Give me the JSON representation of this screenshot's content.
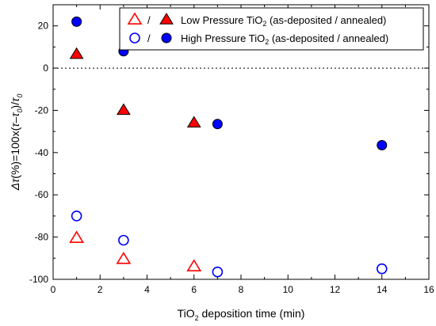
{
  "chart_data": {
    "type": "scatter",
    "xlabel": {
      "pre": "TiO",
      "sub": "2",
      "post": " deposition time (min)"
    },
    "ylabel": {
      "parts": [
        {
          "t": "Δ",
          "style": "italic"
        },
        {
          "t": "τ",
          "style": "italic"
        },
        {
          "t": "(%)=100x(",
          "style": "normal"
        },
        {
          "t": "τ",
          "style": "italic"
        },
        {
          "t": "–",
          "style": "normal"
        },
        {
          "t": "τ",
          "style": "italic"
        },
        {
          "t": "0",
          "style": "italic-sub"
        },
        {
          "t": ")/",
          "style": "normal"
        },
        {
          "t": "τ",
          "style": "italic"
        },
        {
          "t": "0",
          "style": "italic-sub"
        }
      ]
    },
    "xlim": [
      0,
      16
    ],
    "ylim": [
      -100,
      30
    ],
    "xticks": [
      "0",
      "2",
      "4",
      "6",
      "8",
      "10",
      "12",
      "14",
      "16"
    ],
    "yticks": [
      "20",
      "0",
      "-20",
      "-40",
      "-60",
      "-80",
      "-100"
    ],
    "zero_line": true,
    "grid": false,
    "legend_position": "top-right",
    "legend": [
      {
        "sep": "/",
        "pre": "Low Pressure TiO",
        "sub": "2",
        "post": " (as-deposited / annealed)"
      },
      {
        "sep": "/",
        "pre": "High Pressure TiO",
        "sub": "2",
        "post": " (as-deposited / annealed)"
      }
    ],
    "series": [
      {
        "marker": "triangle",
        "filled": false,
        "color": "#ff0000",
        "x": [
          1,
          3,
          6
        ],
        "y": [
          -80.5,
          -90.5,
          -94
        ]
      },
      {
        "marker": "triangle",
        "filled": true,
        "color": "#ff0000",
        "x": [
          1,
          3,
          6
        ],
        "y": [
          6.5,
          -20,
          -26
        ]
      },
      {
        "marker": "circle",
        "filled": false,
        "color": "#0000ff",
        "x": [
          1,
          3,
          7,
          14
        ],
        "y": [
          -70,
          -81.5,
          -96.5,
          -95
        ]
      },
      {
        "marker": "circle",
        "filled": true,
        "color": "#0000ff",
        "x": [
          1,
          3,
          7,
          14
        ],
        "y": [
          22,
          8,
          -26.5,
          -36.5
        ]
      }
    ]
  }
}
